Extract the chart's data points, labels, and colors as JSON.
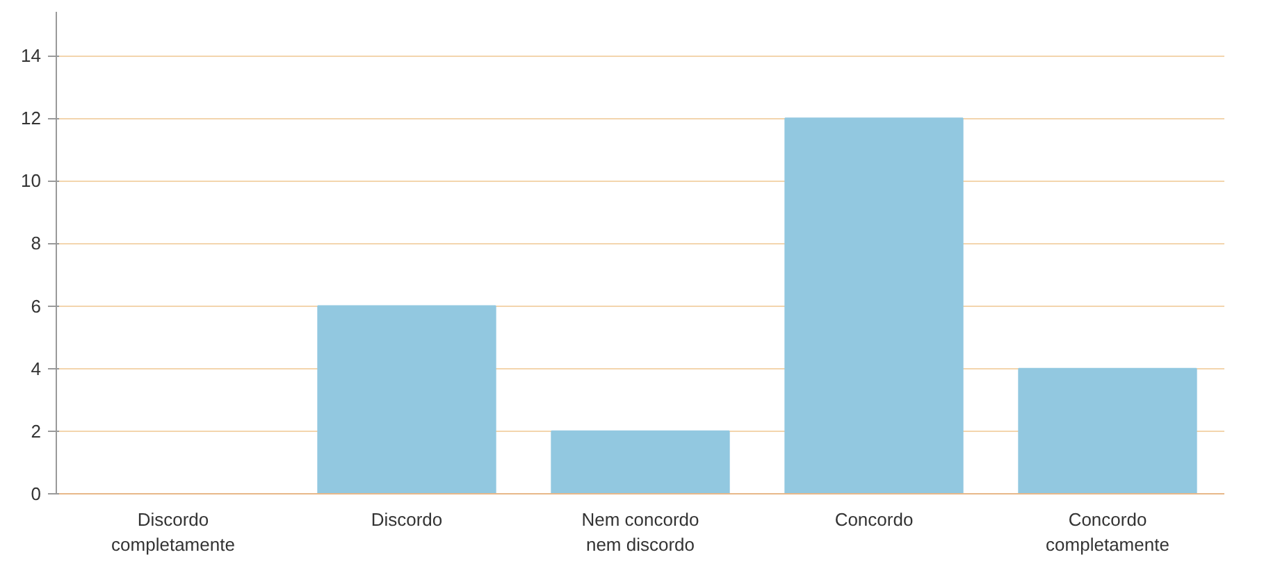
{
  "chart_data": {
    "type": "bar",
    "categories": [
      "Discordo completamente",
      "Discordo",
      "Nem concordo nem discordo",
      "Concordo",
      "Concordo completamente"
    ],
    "values": [
      0,
      6,
      2,
      12,
      4
    ],
    "color": "#92c8e0",
    "ylim": [
      0,
      15.4
    ],
    "yticks": [
      0,
      2,
      4,
      6,
      8,
      10,
      12,
      14
    ],
    "grid": "y"
  }
}
